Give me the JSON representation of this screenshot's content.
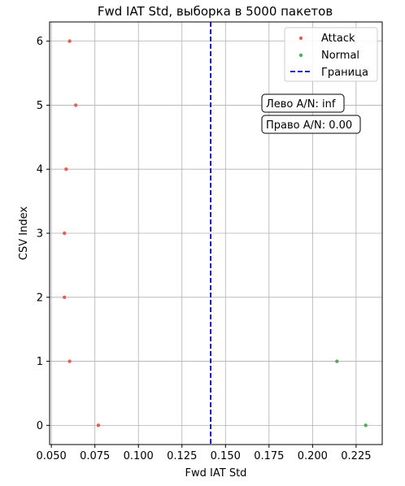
{
  "chart_data": {
    "type": "scatter",
    "title": "Fwd IAT Std, выборка в 5000 пакетов",
    "xlabel": "Fwd IAT Std",
    "ylabel": "CSV Index",
    "xlim": [
      0.049,
      0.24
    ],
    "ylim": [
      -0.3,
      6.3
    ],
    "xticks": [
      0.05,
      0.075,
      0.1,
      0.125,
      0.15,
      0.175,
      0.2,
      0.225
    ],
    "xtick_labels": [
      "0.050",
      "0.075",
      "0.100",
      "0.125",
      "0.150",
      "0.175",
      "0.200",
      "0.225"
    ],
    "yticks": [
      0,
      1,
      2,
      3,
      4,
      5,
      6
    ],
    "ytick_labels": [
      "0",
      "1",
      "2",
      "3",
      "4",
      "5",
      "6"
    ],
    "grid": true,
    "legend_position": "top-right",
    "series": [
      {
        "name": "Attack",
        "color": "#e8604c",
        "marker": "circle",
        "points": [
          {
            "x": 0.0605,
            "y": 6
          },
          {
            "x": 0.064,
            "y": 5
          },
          {
            "x": 0.0585,
            "y": 4
          },
          {
            "x": 0.0575,
            "y": 3
          },
          {
            "x": 0.0575,
            "y": 2
          },
          {
            "x": 0.0605,
            "y": 1
          },
          {
            "x": 0.077,
            "y": 0
          }
        ]
      },
      {
        "name": "Normal",
        "color": "#4caf50",
        "marker": "circle",
        "points": [
          {
            "x": 0.214,
            "y": 1
          },
          {
            "x": 0.2305,
            "y": 0
          }
        ]
      }
    ],
    "threshold": {
      "name": "Граница",
      "x": 0.1415,
      "color": "#0000cc",
      "style": "dashed"
    },
    "annotations": [
      {
        "text": "Лево A/N: inf"
      },
      {
        "text": "Право A/N: 0.00"
      }
    ]
  }
}
